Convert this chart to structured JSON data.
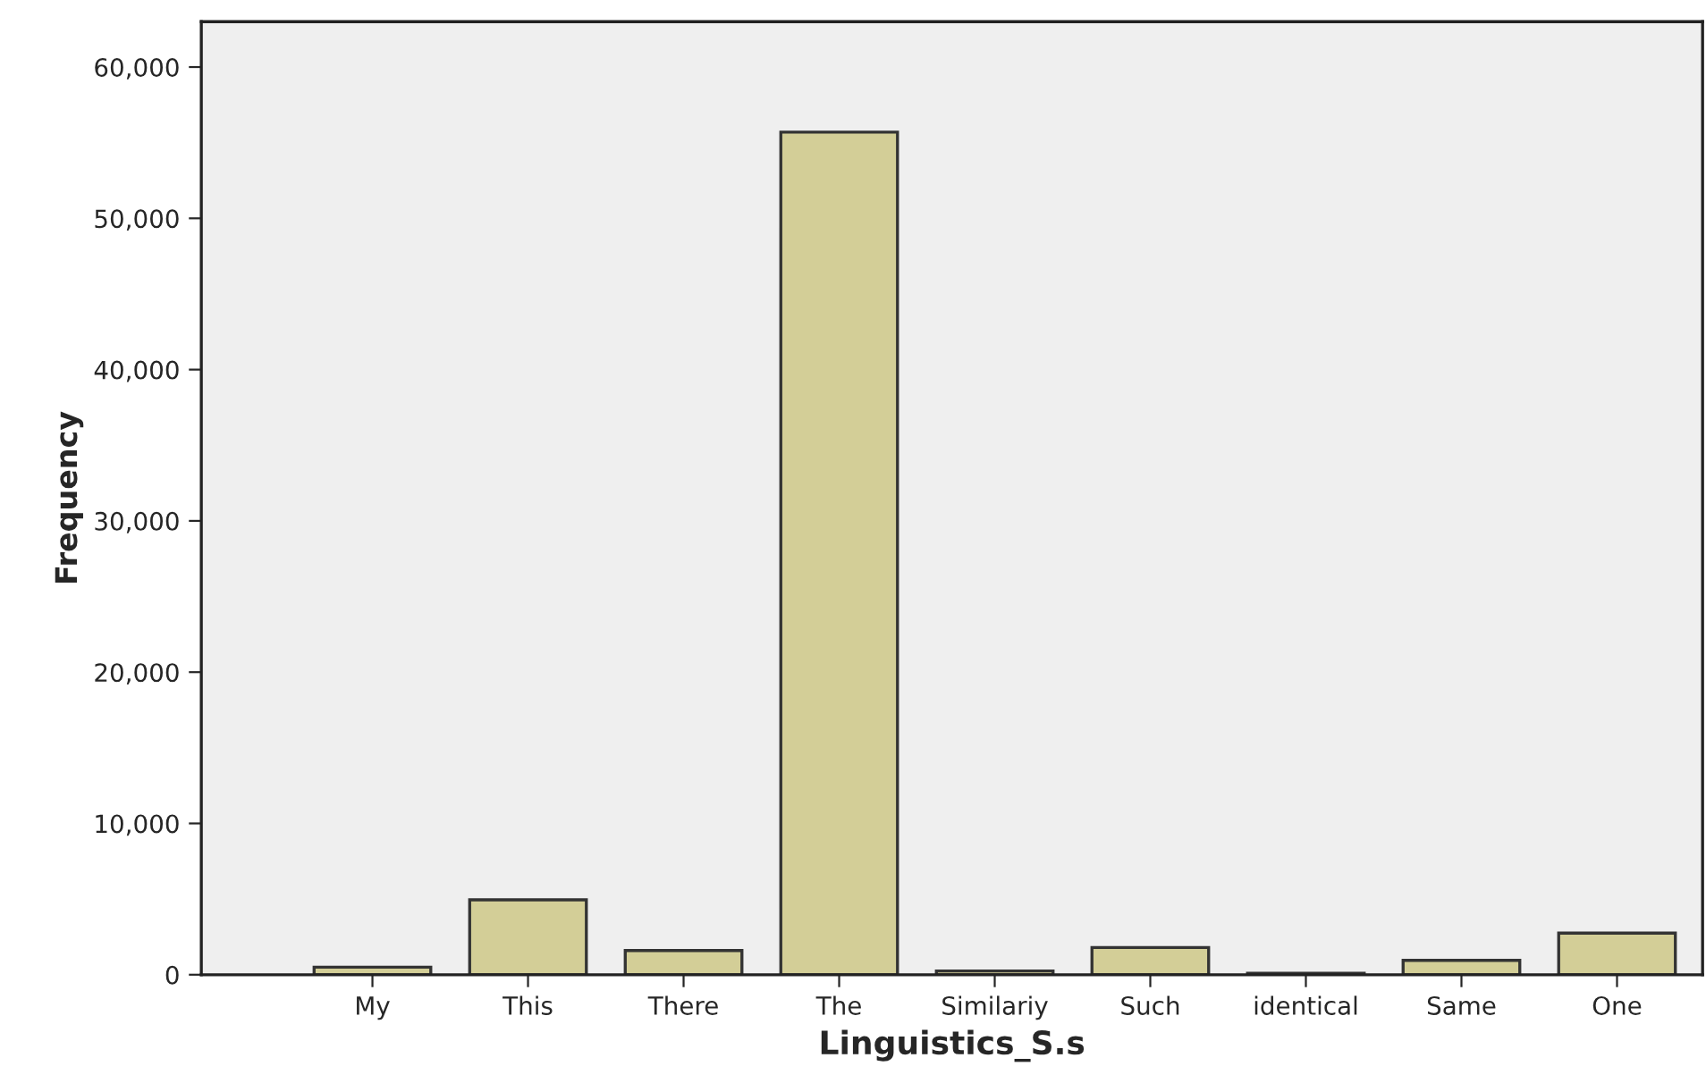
{
  "chart_data": {
    "type": "bar",
    "xlabel": "Linguistics_S.s",
    "ylabel": "Frequency",
    "categories": [
      "My",
      "This",
      "There",
      "The",
      "Similariy",
      "Such",
      "identical",
      "Same",
      "One"
    ],
    "values": [
      500,
      4950,
      1600,
      55700,
      250,
      1800,
      100,
      950,
      2750
    ],
    "color": "#d3ce97",
    "ylim": [
      0,
      63000
    ],
    "yticks": [
      {
        "value": 0,
        "label": "0"
      },
      {
        "value": 10000,
        "label": "10,000"
      },
      {
        "value": 20000,
        "label": "20,000"
      },
      {
        "value": 30000,
        "label": "30,000"
      },
      {
        "value": 40000,
        "label": "40,000"
      },
      {
        "value": 50000,
        "label": "50,000"
      },
      {
        "value": 60000,
        "label": "60,000"
      }
    ],
    "grid": false
  }
}
